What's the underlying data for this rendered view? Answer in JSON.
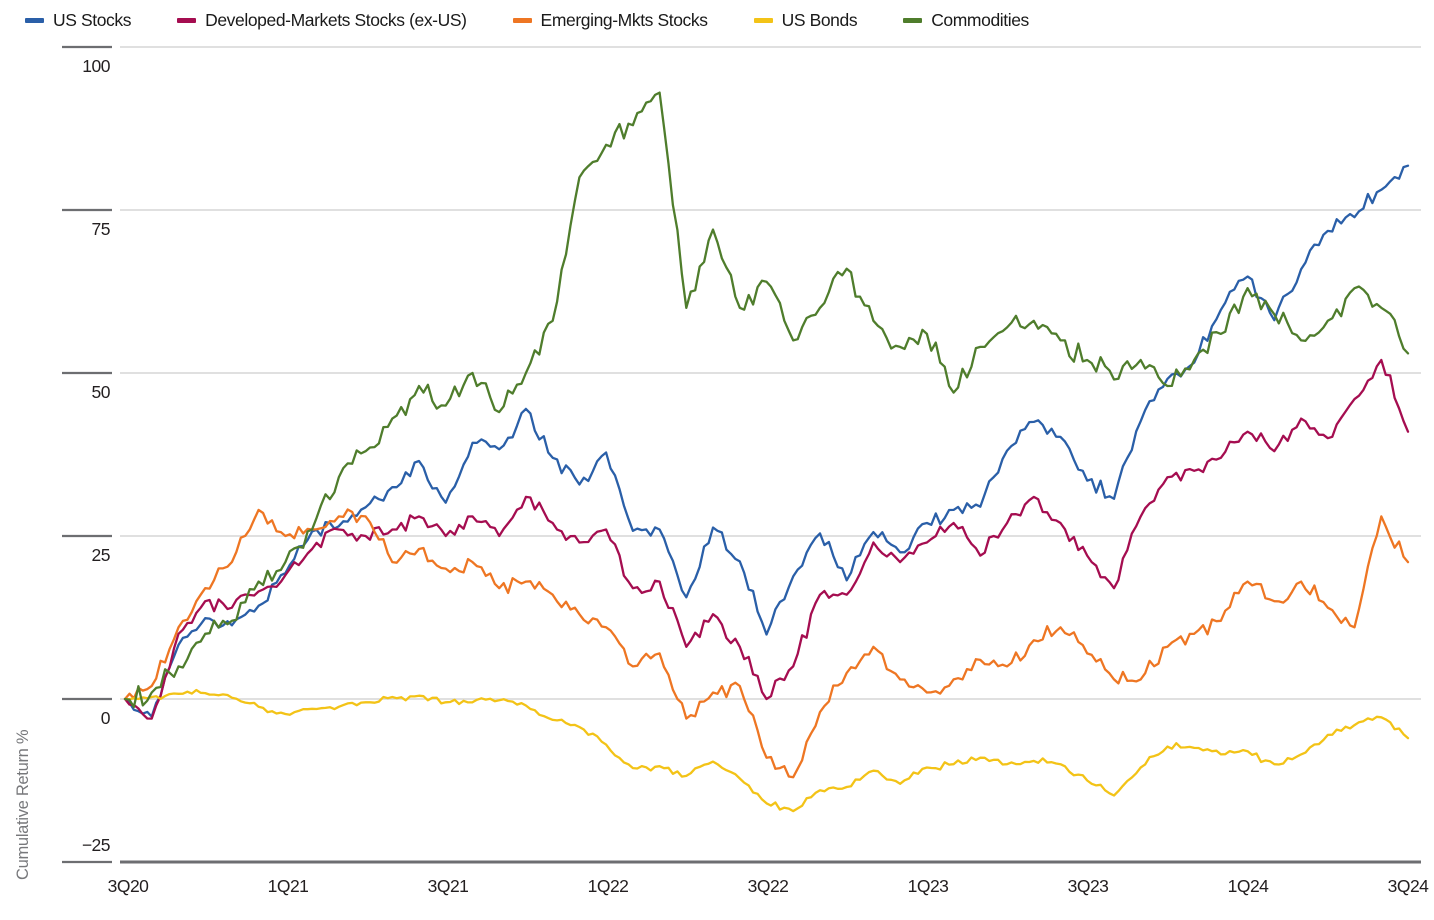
{
  "legend": [
    {
      "label": "US Stocks",
      "color": "#2a5fa8"
    },
    {
      "label": "Developed-Markets Stocks (ex-US)",
      "color": "#a50d50"
    },
    {
      "label": "Emerging-Mkts Stocks",
      "color": "#ee7623"
    },
    {
      "label": "US Bonds",
      "color": "#f3c317"
    },
    {
      "label": "Commodities",
      "color": "#4f7d2c"
    }
  ],
  "y_axis": {
    "title": "Cumulative Return %",
    "tick_labels": [
      "100",
      "75",
      "50",
      "25",
      "0",
      "−25"
    ],
    "tick_values": [
      100,
      75,
      50,
      25,
      0,
      -25
    ]
  },
  "x_axis": {
    "tick_labels": [
      "3Q20",
      "1Q21",
      "3Q21",
      "1Q22",
      "3Q22",
      "1Q23",
      "3Q23",
      "1Q24",
      "3Q24"
    ]
  },
  "colors": {
    "gridline": "#d6d6d6",
    "tick": "#6d6e71",
    "axis": "#6d6e71"
  },
  "chart_data": {
    "type": "line",
    "ylabel": "Cumulative Return %",
    "ylim": [
      -25,
      100
    ],
    "grid": "horizontal",
    "legend_position": "top",
    "x": [
      "2020-09",
      "2020-10",
      "2020-11",
      "2020-12",
      "2021-01",
      "2021-02",
      "2021-03",
      "2021-04",
      "2021-05",
      "2021-06",
      "2021-07",
      "2021-08",
      "2021-09",
      "2021-10",
      "2021-11",
      "2021-12",
      "2022-01",
      "2022-02",
      "2022-03",
      "2022-04",
      "2022-05",
      "2022-06",
      "2022-07",
      "2022-08",
      "2022-09",
      "2022-10",
      "2022-11",
      "2022-12",
      "2023-01",
      "2023-02",
      "2023-03",
      "2023-04",
      "2023-05",
      "2023-06",
      "2023-07",
      "2023-08",
      "2023-09",
      "2023-10",
      "2023-11",
      "2023-12",
      "2024-01",
      "2024-02",
      "2024-03",
      "2024-04",
      "2024-05",
      "2024-06",
      "2024-07",
      "2024-08",
      "2024-09"
    ],
    "series": [
      {
        "name": "US Stocks",
        "color": "#2a5fa8",
        "values": [
          0,
          -2.7,
          8.3,
          12.4,
          11.3,
          14.3,
          19.3,
          25.7,
          26.5,
          29.4,
          32.5,
          36.5,
          30.1,
          39.3,
          38.3,
          44.5,
          37.0,
          32.9,
          37.8,
          25.8,
          26.0,
          15.6,
          26.3,
          21.1,
          9.9,
          18.8,
          25.4,
          18.2,
          25.6,
          22.5,
          27.0,
          29.0,
          29.5,
          38.1,
          42.5,
          40.2,
          33.5,
          30.7,
          42.6,
          49.1,
          51.6,
          59.7,
          64.8,
          58.1,
          65.9,
          71.8,
          73.9,
          78.1,
          81.8
        ]
      },
      {
        "name": "Developed-Markets Stocks (ex-US)",
        "color": "#a50d50",
        "values": [
          0,
          -3,
          10,
          15,
          14,
          16.5,
          19,
          23,
          26,
          25,
          26,
          28,
          25,
          28,
          25,
          31,
          27,
          24,
          26,
          17,
          18,
          8,
          13,
          8,
          0,
          5,
          16,
          16,
          24,
          21,
          24,
          27,
          22,
          27,
          31,
          27,
          22,
          17,
          28,
          34,
          35,
          37,
          41,
          38,
          43,
          40,
          46,
          52,
          41
        ]
      },
      {
        "name": "Emerging-Mkts Stocks",
        "color": "#ee7623",
        "values": [
          0,
          2,
          11,
          17,
          21,
          29,
          25,
          26,
          28,
          28,
          21,
          23,
          20,
          21,
          17,
          18,
          16,
          13,
          11,
          5,
          7,
          -3,
          1,
          2,
          -9,
          -12,
          -2,
          4,
          8,
          3,
          1,
          3,
          6,
          5,
          9,
          11,
          7,
          3,
          3,
          8,
          10,
          12,
          18,
          15,
          18,
          14,
          11,
          28,
          21
        ]
      },
      {
        "name": "US Bonds",
        "color": "#f3c317",
        "values": [
          0,
          0.3,
          0.8,
          0.9,
          0.2,
          -1.2,
          -2.3,
          -1.5,
          -1.2,
          -0.5,
          0.3,
          0.5,
          -0.5,
          -0.5,
          -0.2,
          -1.0,
          -3.2,
          -4.3,
          -7.0,
          -10.6,
          -10.3,
          -11.8,
          -9.6,
          -12.2,
          -16.0,
          -17.2,
          -14.0,
          -13.5,
          -11.0,
          -13.0,
          -10.5,
          -10.0,
          -9.0,
          -10.0,
          -9.5,
          -10.0,
          -12.5,
          -14.8,
          -10.5,
          -7.3,
          -7.5,
          -8.5,
          -8.0,
          -10.0,
          -8.5,
          -5.5,
          -4.0,
          -2.8,
          -6.0
        ]
      },
      {
        "name": "Commodities",
        "color": "#4f7d2c",
        "values": [
          0,
          1,
          5,
          10,
          12,
          18,
          21,
          26,
          34,
          38,
          43,
          48,
          45,
          50,
          44,
          50,
          58,
          80,
          85,
          88,
          93,
          60,
          72,
          60,
          64,
          55,
          60,
          66,
          58,
          54,
          56,
          47,
          54,
          57,
          58,
          55,
          52,
          49,
          52,
          48,
          52,
          56,
          63,
          59,
          55,
          58,
          63,
          60,
          53
        ]
      }
    ]
  }
}
